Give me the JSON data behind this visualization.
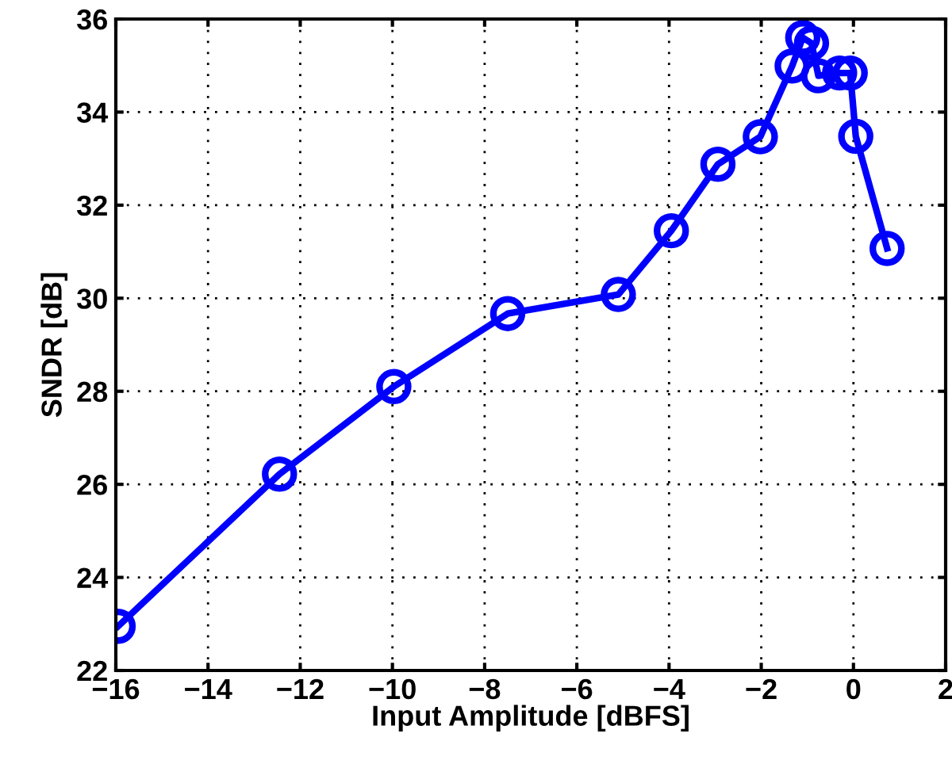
{
  "chart_data": {
    "type": "line",
    "xlabel": "Input Amplitude [dBFS]",
    "ylabel": "SNDR [dB]",
    "x": [
      -15.95,
      -12.45,
      -9.97,
      -7.5,
      -5.1,
      -3.95,
      -2.94,
      -2.02,
      -1.33,
      -1.1,
      -0.91,
      -0.76,
      -0.3,
      -0.07,
      0.05,
      0.73
    ],
    "series": [
      {
        "color": "#0000ff",
        "values": [
          22.95,
          26.22,
          28.1,
          29.67,
          30.08,
          31.45,
          32.88,
          33.47,
          34.99,
          35.6,
          35.48,
          34.78,
          34.84,
          34.84,
          33.48,
          31.07
        ]
      }
    ],
    "xlim": [
      -16,
      2
    ],
    "xticks": [
      {
        "value": -16,
        "label": "−16"
      },
      {
        "value": -14,
        "label": "−14"
      },
      {
        "value": -12,
        "label": "−12"
      },
      {
        "value": -10,
        "label": "−10"
      },
      {
        "value": -8,
        "label": "−8"
      },
      {
        "value": -6,
        "label": "−6"
      },
      {
        "value": -4,
        "label": "−4"
      },
      {
        "value": -2,
        "label": "−2"
      },
      0,
      2
    ],
    "ylim": [
      22,
      36
    ],
    "yticks": [
      22,
      24,
      26,
      28,
      30,
      32,
      34,
      36
    ],
    "grid": true,
    "marker": "circle",
    "line_style": "solid",
    "legend": false
  }
}
